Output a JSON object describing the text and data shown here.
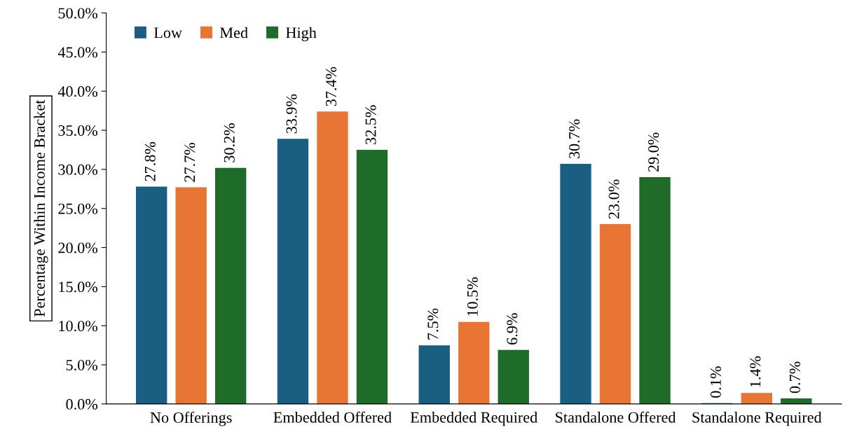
{
  "chart_data": {
    "type": "bar",
    "ylabel": "Percentage Within Income Bracket",
    "categories": [
      "No Offerings",
      "Embedded Offered",
      "Embedded Required",
      "Standalone Offered",
      "Standalone Required"
    ],
    "series": [
      {
        "name": "Low",
        "color": "#1a5f82",
        "values": [
          27.8,
          33.9,
          7.5,
          30.7,
          0.1
        ],
        "value_labels": [
          "27.8%",
          "33.9%",
          "7.5%",
          "30.7%",
          "0.1%"
        ]
      },
      {
        "name": "Med",
        "color": "#e97534",
        "values": [
          27.7,
          37.4,
          10.5,
          23.0,
          1.4
        ],
        "value_labels": [
          "27.7%",
          "37.4%",
          "10.5%",
          "23.0%",
          "1.4%"
        ]
      },
      {
        "name": "High",
        "color": "#1f6b2a",
        "values": [
          30.2,
          32.5,
          6.9,
          29.0,
          0.7
        ],
        "value_labels": [
          "30.2%",
          "32.5%",
          "6.9%",
          "29.0%",
          "0.7%"
        ]
      }
    ],
    "ylim": [
      0,
      50
    ],
    "yticks": [
      {
        "value": 0,
        "label": "0.0%"
      },
      {
        "value": 5,
        "label": "5.0%"
      },
      {
        "value": 10,
        "label": "10.0%"
      },
      {
        "value": 15,
        "label": "15.0%"
      },
      {
        "value": 20,
        "label": "20.0%"
      },
      {
        "value": 25,
        "label": "25.0%"
      },
      {
        "value": 30,
        "label": "30.0%"
      },
      {
        "value": 35,
        "label": "35.0%"
      },
      {
        "value": 40,
        "label": "40.0%"
      },
      {
        "value": 45,
        "label": "45.0%"
      },
      {
        "value": 50,
        "label": "50.0%"
      }
    ],
    "grid": false,
    "legend": "top left"
  }
}
